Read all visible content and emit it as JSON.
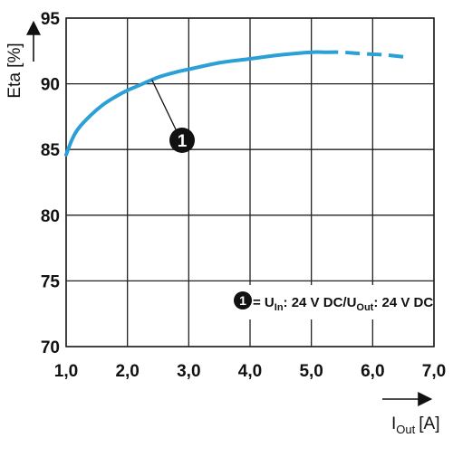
{
  "chart_data": {
    "type": "line",
    "ylabel": "Eta [%]",
    "xlabel_main": "I",
    "xlabel_sub": "Out",
    "xlabel_unit": "[A]",
    "xlim": [
      1.0,
      7.0
    ],
    "ylim": [
      70,
      95
    ],
    "x_ticks": [
      1.0,
      2.0,
      3.0,
      4.0,
      5.0,
      6.0,
      7.0
    ],
    "x_tick_labels": [
      "1,0",
      "2,0",
      "3,0",
      "4,0",
      "5,0",
      "6,0",
      "7,0"
    ],
    "y_ticks": [
      70,
      75,
      80,
      85,
      90,
      95
    ],
    "y_tick_labels": [
      "70",
      "75",
      "80",
      "85",
      "90",
      "95"
    ],
    "grid": true,
    "line_color": "#2aa0d6",
    "series": [
      {
        "marker_label": "1",
        "solid": {
          "x": [
            1.0,
            1.1,
            1.2,
            1.4,
            1.6,
            1.8,
            2.0,
            2.2,
            2.5,
            2.8,
            3.0,
            3.5,
            4.0,
            4.5,
            5.0,
            5.2
          ],
          "y": [
            84.6,
            85.8,
            86.6,
            87.6,
            88.4,
            89.0,
            89.5,
            89.9,
            90.5,
            90.9,
            91.1,
            91.6,
            91.9,
            92.2,
            92.4,
            92.4
          ]
        },
        "dashed": {
          "x": [
            5.2,
            5.5,
            5.8,
            6.2,
            6.6
          ],
          "y": [
            92.4,
            92.4,
            92.3,
            92.2,
            92.0
          ]
        }
      }
    ],
    "annotation": {
      "marker_label": "1",
      "pointer_x": 2.4,
      "pointer_y": 90.3
    },
    "legend": {
      "position": "bottom-right",
      "marker_label": "1",
      "eq": " = U",
      "sub1": "In",
      "mid": ": 24 V DC/U",
      "sub2": "Out",
      "end": ": 24 V DC"
    }
  }
}
